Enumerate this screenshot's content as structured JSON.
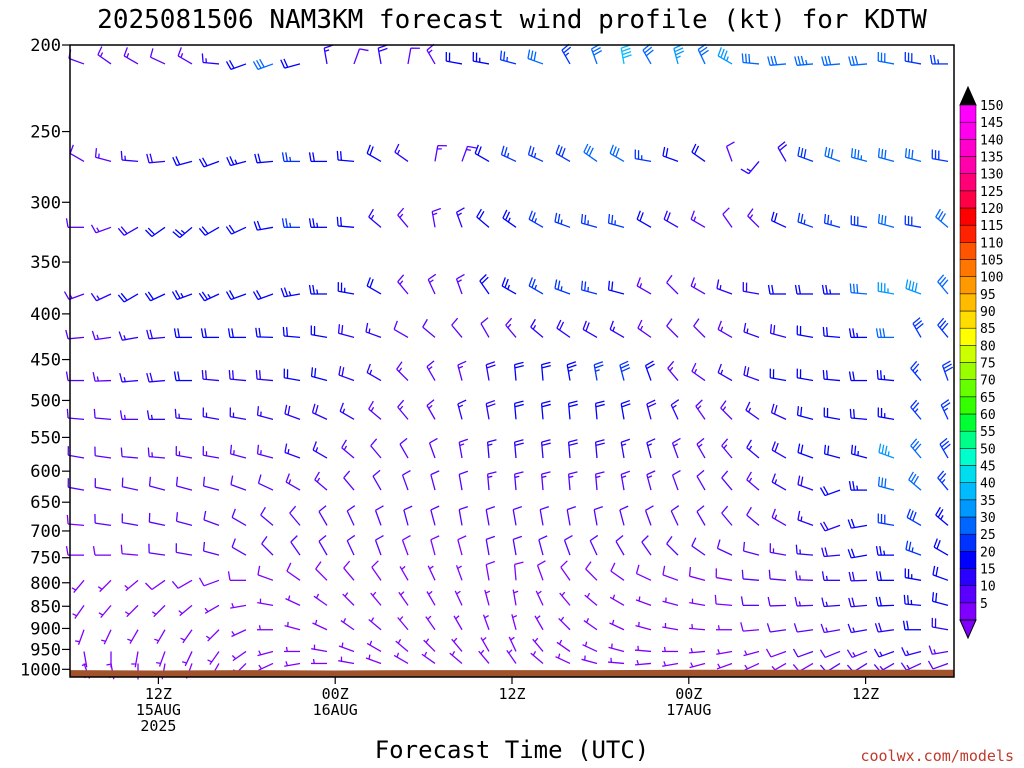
{
  "chart_data": {
    "type": "wind_barb_profile",
    "title": "2025081506 NAM3KM forecast wind profile (kt) for KDTW",
    "xlabel": "Forecast Time (UTC)",
    "ylabel": "",
    "credit": "coolwx.com/models",
    "y_axis": {
      "scale": "log-pressure",
      "range": [
        1020,
        200
      ],
      "ticks": [
        200,
        250,
        300,
        350,
        400,
        450,
        500,
        550,
        600,
        650,
        700,
        750,
        800,
        850,
        900,
        950,
        1000
      ]
    },
    "x_axis": {
      "range_hours": [
        0,
        60
      ],
      "ticks": [
        {
          "hour": 6,
          "l1": "12Z",
          "l2": "15AUG",
          "l3": "2025"
        },
        {
          "hour": 18,
          "l1": "00Z",
          "l2": "16AUG",
          "l3": ""
        },
        {
          "hour": 30,
          "l1": "12Z",
          "l2": "",
          "l3": ""
        },
        {
          "hour": 42,
          "l1": "00Z",
          "l2": "17AUG",
          "l3": ""
        },
        {
          "hour": 54,
          "l1": "12Z",
          "l2": "",
          "l3": ""
        }
      ]
    },
    "colorbar": {
      "units": "kt",
      "ticks": [
        5,
        10,
        15,
        20,
        25,
        30,
        35,
        40,
        45,
        50,
        55,
        60,
        65,
        70,
        75,
        80,
        85,
        90,
        95,
        100,
        105,
        110,
        115,
        120,
        125,
        130,
        135,
        140,
        145,
        150
      ],
      "colors": [
        "#7f00ff",
        "#5a00ff",
        "#2a00ff",
        "#0000ff",
        "#0033ff",
        "#0066ff",
        "#0099ff",
        "#00bbff",
        "#00ddee",
        "#00ffcc",
        "#00ff88",
        "#00ff33",
        "#33ff00",
        "#66ff00",
        "#99ff00",
        "#ccff00",
        "#ffff00",
        "#ffdd00",
        "#ffbb00",
        "#ff9900",
        "#ff7700",
        "#ff5500",
        "#ff2200",
        "#ff0000",
        "#ff0044",
        "#ff0077",
        "#ff00aa",
        "#ff00cc",
        "#ff00ee",
        "#ff00ff"
      ]
    },
    "terrain_color": "#a0522d",
    "barb_rows": [
      {
        "p": 210,
        "ddd": [
          290,
          305,
          300,
          295,
          300,
          275,
          250,
          250,
          255,
          350,
          20,
          350,
          10,
          330,
          280,
          280,
          285,
          290,
          330,
          340,
          350,
          330,
          345,
          335,
          300,
          275,
          265,
          265,
          265,
          265,
          280,
          280,
          270
        ],
        "sss": [
          12,
          14,
          13,
          12,
          14,
          16,
          22,
          30,
          20,
          16,
          10,
          18,
          10,
          13,
          22,
          24,
          27,
          30,
          25,
          30,
          40,
          30,
          35,
          32,
          35,
          32,
          32,
          33,
          32,
          30,
          30,
          28,
          27
        ]
      },
      {
        "p": 270,
        "ddd": [
          300,
          285,
          275,
          265,
          255,
          250,
          255,
          265,
          270,
          270,
          275,
          300,
          305,
          10,
          20,
          300,
          295,
          295,
          300,
          305,
          300,
          280,
          290,
          305,
          340,
          220,
          330,
          290,
          290,
          285,
          285,
          285,
          280
        ],
        "sss": [
          12,
          14,
          16,
          18,
          22,
          22,
          23,
          22,
          25,
          22,
          22,
          20,
          16,
          14,
          14,
          22,
          25,
          26,
          28,
          30,
          32,
          25,
          22,
          20,
          10,
          15,
          18,
          28,
          32,
          33,
          30,
          30,
          28
        ]
      },
      {
        "p": 320,
        "ddd": [
          270,
          250,
          240,
          235,
          230,
          240,
          245,
          260,
          270,
          270,
          275,
          310,
          320,
          350,
          340,
          310,
          305,
          300,
          290,
          285,
          285,
          300,
          300,
          300,
          325,
          315,
          295,
          290,
          285,
          280,
          285,
          280,
          310
        ],
        "sss": [
          12,
          14,
          18,
          22,
          24,
          22,
          22,
          22,
          25,
          24,
          22,
          15,
          14,
          14,
          16,
          22,
          24,
          25,
          25,
          26,
          25,
          22,
          18,
          14,
          12,
          14,
          20,
          25,
          26,
          28,
          30,
          28,
          30
        ]
      },
      {
        "p": 380,
        "ddd": [
          250,
          245,
          240,
          245,
          250,
          245,
          250,
          250,
          260,
          270,
          280,
          300,
          320,
          335,
          340,
          325,
          300,
          300,
          290,
          285,
          285,
          300,
          315,
          300,
          290,
          280,
          270,
          270,
          270,
          275,
          280,
          290,
          320
        ],
        "sss": [
          14,
          16,
          20,
          22,
          24,
          23,
          22,
          22,
          24,
          24,
          23,
          22,
          14,
          14,
          14,
          20,
          24,
          25,
          26,
          26,
          22,
          14,
          12,
          14,
          16,
          18,
          20,
          22,
          24,
          30,
          35,
          38,
          32
        ]
      },
      {
        "p": 425,
        "ddd": [
          265,
          262,
          260,
          265,
          270,
          270,
          270,
          272,
          275,
          280,
          285,
          290,
          300,
          310,
          320,
          330,
          320,
          310,
          305,
          300,
          300,
          305,
          315,
          315,
          300,
          290,
          285,
          280,
          275,
          270,
          270,
          330,
          320
        ],
        "sss": [
          12,
          14,
          16,
          18,
          20,
          20,
          20,
          20,
          22,
          20,
          18,
          16,
          12,
          12,
          12,
          12,
          14,
          16,
          18,
          18,
          16,
          14,
          12,
          12,
          14,
          16,
          18,
          20,
          22,
          24,
          30,
          28,
          28
        ]
      },
      {
        "p": 475,
        "ddd": [
          270,
          268,
          265,
          265,
          270,
          275,
          275,
          275,
          280,
          285,
          290,
          300,
          315,
          330,
          345,
          350,
          355,
          355,
          350,
          350,
          345,
          340,
          320,
          305,
          300,
          290,
          280,
          280,
          275,
          270,
          275,
          320,
          340
        ],
        "sss": [
          12,
          14,
          16,
          18,
          20,
          18,
          18,
          18,
          20,
          20,
          18,
          16,
          14,
          14,
          14,
          18,
          20,
          22,
          24,
          26,
          28,
          22,
          14,
          14,
          16,
          18,
          20,
          20,
          22,
          22,
          24,
          26,
          28
        ]
      },
      {
        "p": 525,
        "ddd": [
          275,
          275,
          270,
          270,
          275,
          280,
          280,
          285,
          290,
          295,
          300,
          310,
          320,
          330,
          345,
          350,
          355,
          355,
          355,
          355,
          350,
          345,
          335,
          325,
          315,
          305,
          295,
          285,
          280,
          275,
          280,
          320,
          335
        ],
        "sss": [
          10,
          12,
          14,
          16,
          16,
          16,
          16,
          16,
          18,
          18,
          16,
          14,
          14,
          14,
          16,
          18,
          20,
          22,
          22,
          22,
          20,
          18,
          16,
          14,
          14,
          16,
          18,
          20,
          22,
          22,
          24,
          26,
          26
        ]
      },
      {
        "p": 580,
        "ddd": [
          280,
          278,
          275,
          275,
          280,
          280,
          285,
          285,
          290,
          300,
          310,
          320,
          330,
          340,
          350,
          355,
          355,
          355,
          355,
          355,
          350,
          345,
          340,
          330,
          320,
          310,
          300,
          290,
          285,
          285,
          290,
          320,
          330
        ],
        "sss": [
          10,
          12,
          12,
          14,
          14,
          14,
          14,
          14,
          16,
          16,
          14,
          12,
          12,
          12,
          14,
          16,
          18,
          18,
          18,
          18,
          16,
          16,
          14,
          14,
          14,
          16,
          18,
          20,
          22,
          24,
          35,
          32,
          28
        ]
      },
      {
        "p": 630,
        "ddd": [
          280,
          280,
          282,
          285,
          285,
          285,
          290,
          295,
          300,
          310,
          320,
          330,
          340,
          345,
          350,
          355,
          355,
          355,
          355,
          355,
          350,
          345,
          340,
          330,
          320,
          310,
          300,
          290,
          250,
          270,
          285,
          310,
          320
        ],
        "sss": [
          10,
          10,
          12,
          12,
          12,
          12,
          12,
          12,
          14,
          14,
          12,
          12,
          10,
          10,
          12,
          14,
          14,
          14,
          14,
          14,
          14,
          14,
          12,
          12,
          12,
          14,
          16,
          18,
          20,
          24,
          30,
          30,
          26
        ]
      },
      {
        "p": 690,
        "ddd": [
          275,
          278,
          280,
          282,
          285,
          290,
          300,
          310,
          320,
          330,
          335,
          340,
          345,
          345,
          350,
          350,
          350,
          350,
          350,
          350,
          345,
          340,
          335,
          330,
          320,
          310,
          300,
          290,
          250,
          260,
          280,
          300,
          310
        ],
        "sss": [
          8,
          10,
          10,
          10,
          10,
          10,
          10,
          10,
          12,
          12,
          10,
          10,
          10,
          10,
          10,
          12,
          12,
          12,
          12,
          12,
          12,
          12,
          10,
          10,
          10,
          12,
          14,
          16,
          18,
          22,
          28,
          28,
          24
        ]
      },
      {
        "p": 745,
        "ddd": [
          270,
          270,
          275,
          278,
          280,
          285,
          300,
          315,
          325,
          330,
          335,
          340,
          340,
          345,
          345,
          350,
          350,
          345,
          340,
          335,
          330,
          325,
          315,
          305,
          295,
          285,
          280,
          275,
          265,
          260,
          270,
          290,
          300
        ],
        "sss": [
          8,
          8,
          8,
          10,
          10,
          10,
          10,
          10,
          10,
          10,
          10,
          10,
          8,
          8,
          8,
          10,
          10,
          10,
          10,
          10,
          10,
          10,
          10,
          10,
          10,
          12,
          14,
          16,
          18,
          20,
          24,
          26,
          22
        ]
      },
      {
        "p": 795,
        "ddd": [
          220,
          225,
          230,
          235,
          240,
          250,
          270,
          290,
          305,
          315,
          320,
          325,
          330,
          335,
          340,
          350,
          355,
          340,
          325,
          315,
          305,
          295,
          290,
          285,
          280,
          275,
          275,
          272,
          270,
          268,
          270,
          280,
          290
        ],
        "sss": [
          6,
          6,
          6,
          8,
          8,
          8,
          8,
          8,
          8,
          8,
          8,
          8,
          6,
          6,
          6,
          8,
          8,
          8,
          8,
          8,
          8,
          8,
          8,
          8,
          8,
          10,
          12,
          14,
          16,
          18,
          22,
          24,
          20
        ]
      },
      {
        "p": 848,
        "ddd": [
          215,
          220,
          225,
          225,
          230,
          240,
          260,
          280,
          295,
          305,
          315,
          320,
          325,
          330,
          335,
          345,
          350,
          335,
          320,
          310,
          300,
          290,
          285,
          280,
          275,
          270,
          268,
          268,
          266,
          265,
          268,
          275,
          285
        ],
        "sss": [
          6,
          6,
          6,
          6,
          6,
          6,
          6,
          6,
          6,
          6,
          6,
          6,
          6,
          6,
          6,
          6,
          6,
          6,
          6,
          6,
          6,
          6,
          6,
          6,
          8,
          10,
          12,
          14,
          16,
          18,
          22,
          24,
          20
        ]
      },
      {
        "p": 903,
        "ddd": [
          200,
          205,
          210,
          210,
          215,
          225,
          245,
          270,
          285,
          295,
          305,
          310,
          320,
          325,
          330,
          340,
          345,
          330,
          315,
          305,
          295,
          285,
          280,
          275,
          270,
          265,
          262,
          262,
          260,
          260,
          262,
          270,
          280
        ],
        "sss": [
          6,
          6,
          6,
          6,
          6,
          6,
          6,
          6,
          6,
          6,
          6,
          6,
          6,
          6,
          6,
          6,
          6,
          6,
          6,
          6,
          6,
          6,
          6,
          6,
          6,
          8,
          10,
          12,
          14,
          16,
          18,
          20,
          18
        ]
      },
      {
        "p": 955,
        "ddd": [
          170,
          180,
          190,
          200,
          205,
          215,
          235,
          255,
          270,
          280,
          290,
          300,
          310,
          315,
          320,
          330,
          335,
          320,
          305,
          295,
          285,
          275,
          270,
          265,
          260,
          255,
          250,
          250,
          248,
          248,
          250,
          255,
          260
        ],
        "sss": [
          6,
          6,
          6,
          6,
          6,
          6,
          6,
          6,
          6,
          6,
          6,
          6,
          6,
          6,
          6,
          6,
          6,
          6,
          6,
          6,
          6,
          6,
          6,
          6,
          6,
          6,
          8,
          10,
          12,
          14,
          16,
          16,
          14
        ]
      },
      {
        "p": 985,
        "ddd": [
          160,
          170,
          180,
          190,
          200,
          210,
          225,
          245,
          260,
          270,
          280,
          290,
          300,
          305,
          310,
          320,
          325,
          310,
          295,
          285,
          275,
          265,
          260,
          255,
          250,
          245,
          240,
          240,
          238,
          238,
          240,
          245,
          250
        ],
        "sss": [
          6,
          6,
          6,
          6,
          6,
          6,
          6,
          6,
          6,
          6,
          6,
          6,
          6,
          6,
          6,
          6,
          6,
          6,
          6,
          6,
          6,
          6,
          6,
          6,
          6,
          6,
          6,
          8,
          10,
          12,
          14,
          14,
          12
        ]
      }
    ]
  }
}
